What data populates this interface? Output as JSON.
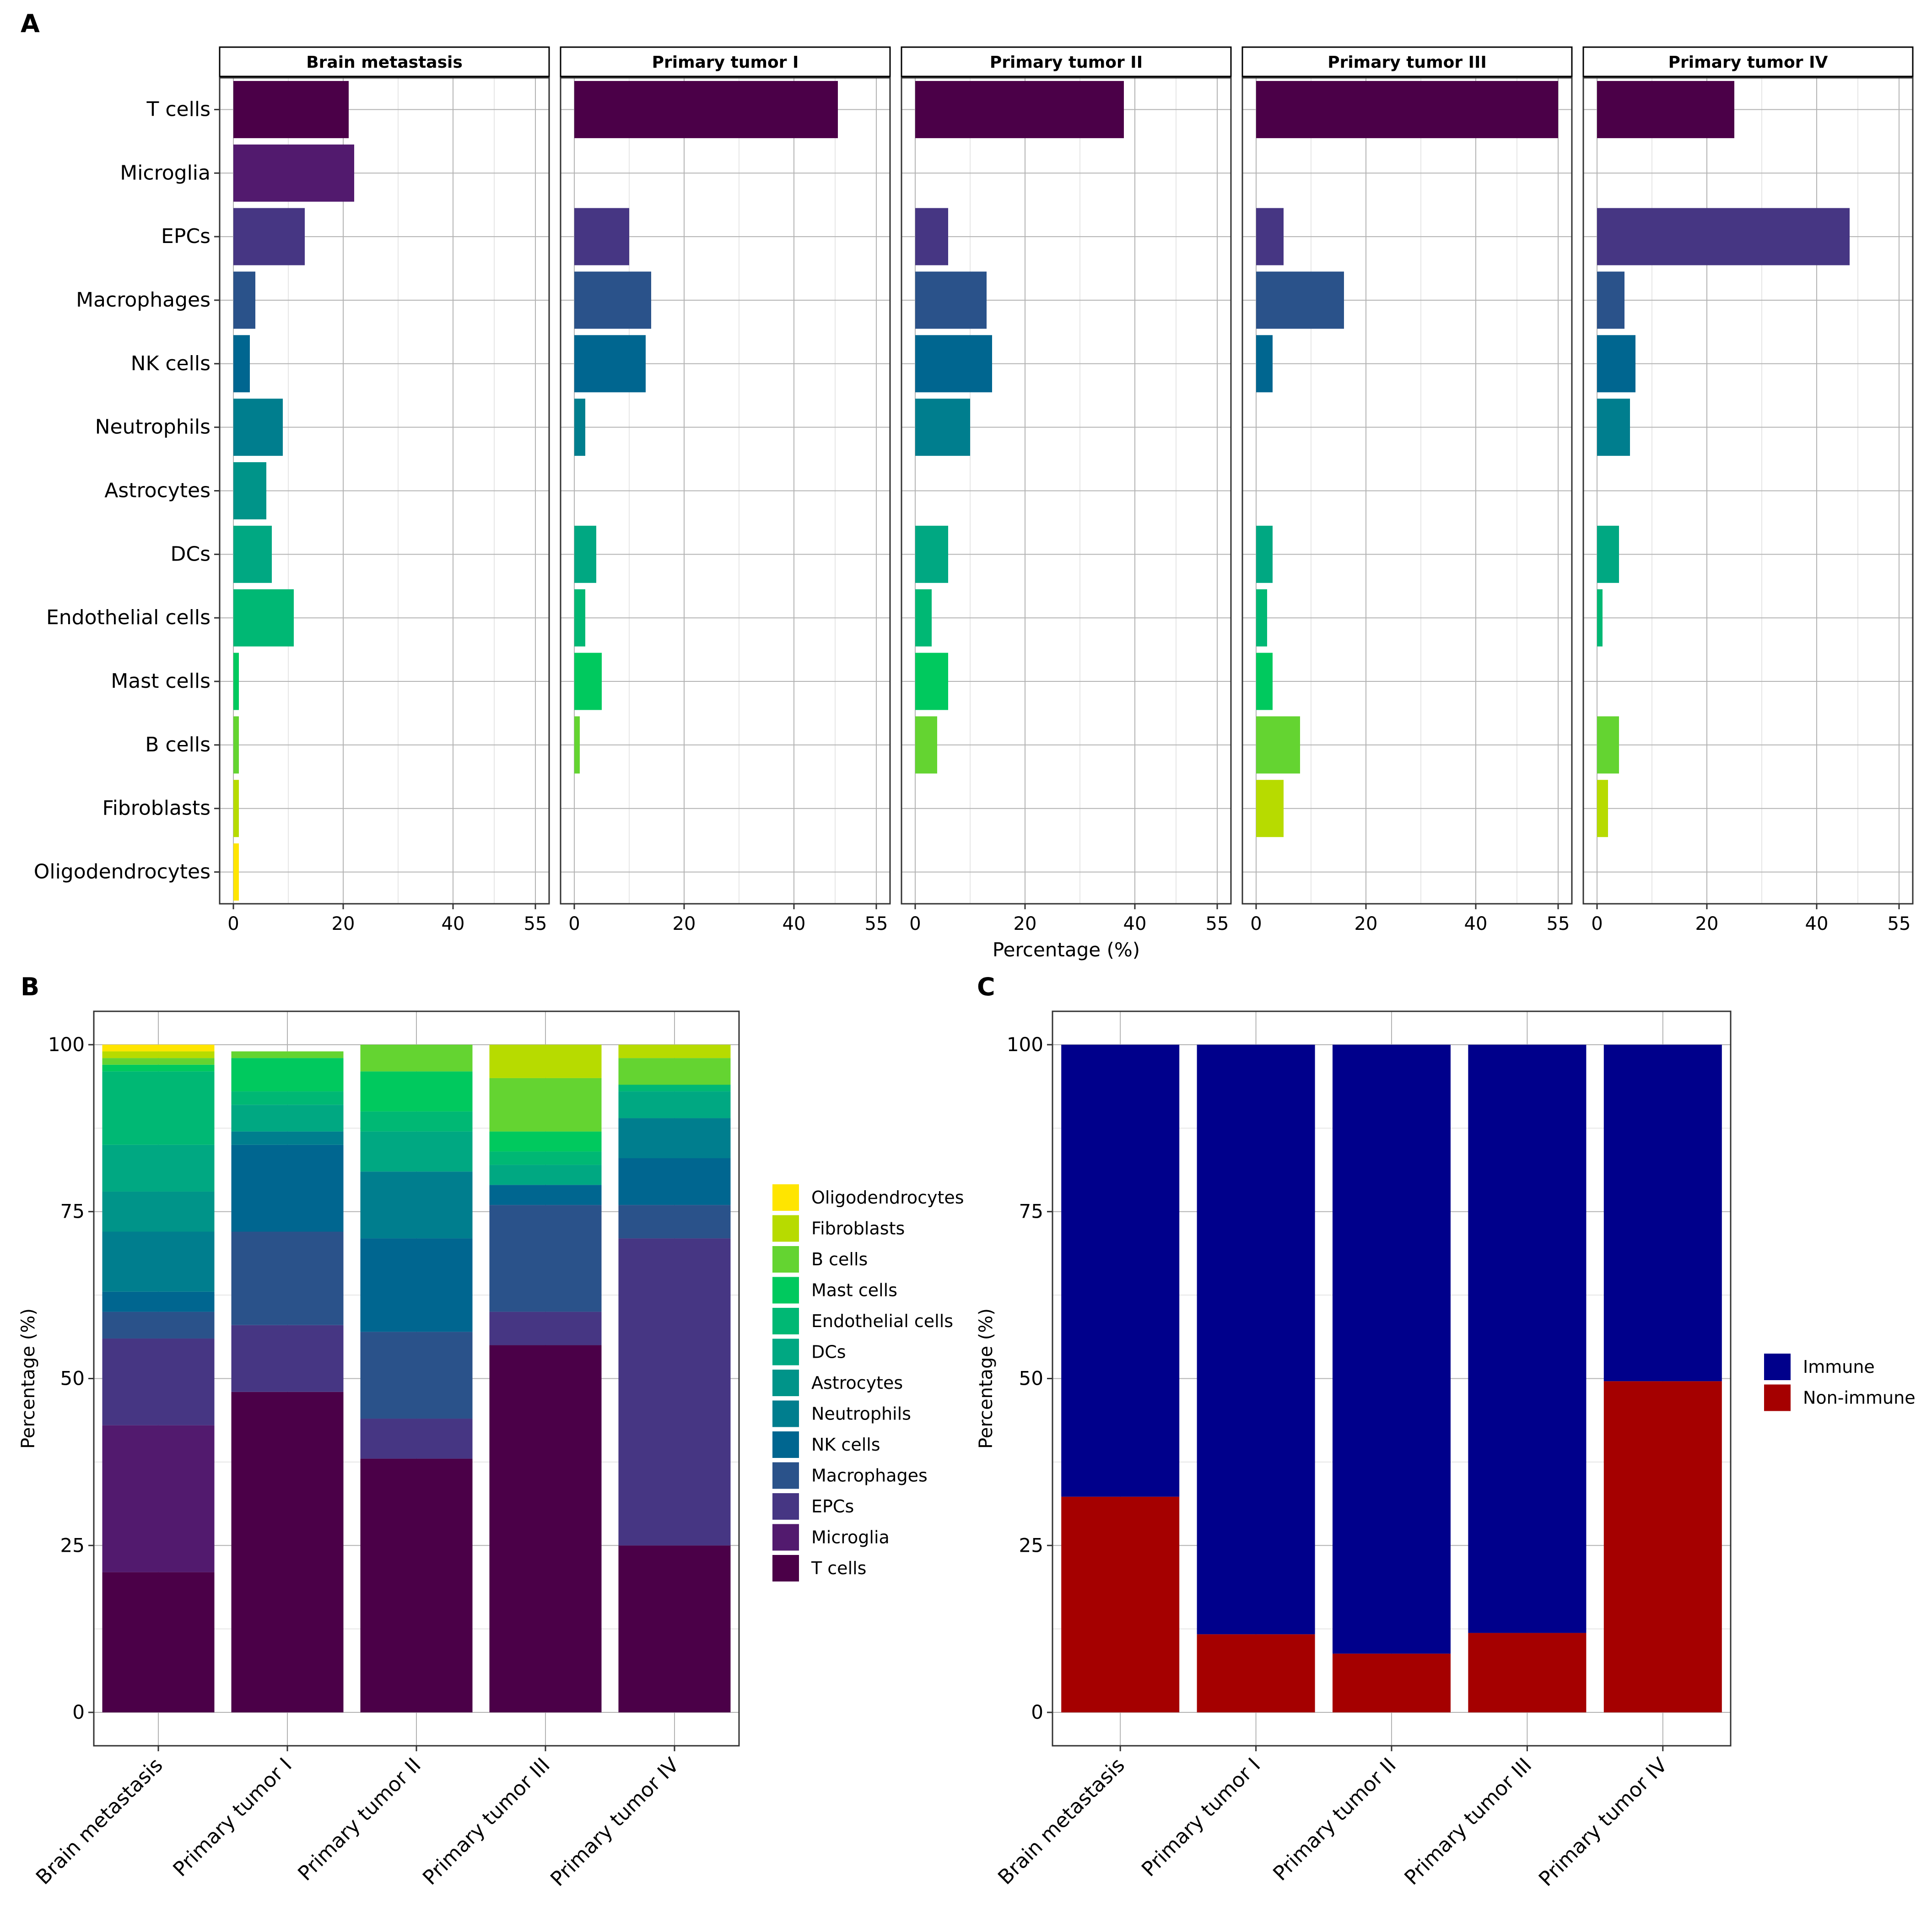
{
  "panel_labels": {
    "a": "A",
    "b": "B",
    "c": "C"
  },
  "colors": {
    "T cells": "#4B0048",
    "Microglia": "#521A6E",
    "EPCs": "#463683",
    "Macrophages": "#2A528A",
    "NK cells": "#006690",
    "Neutrophils": "#007E8E",
    "Astrocytes": "#009489",
    "DCs": "#00A882",
    "Endothelial cells": "#00B874",
    "Mast cells": "#00C95E",
    "B cells": "#64D431",
    "Fibroblasts": "#B7DB00",
    "Oligodendrocytes": "#FFE500",
    "Immune": "#00008B",
    "Non-immune": "#A50000",
    "grid_major": "#b3b3b3",
    "grid_minor": "#e6e6e6"
  },
  "chart_data": [
    {
      "id": "A",
      "type": "bar",
      "orientation": "horizontal",
      "facets": [
        "Brain metastasis",
        "Primary tumor I",
        "Primary tumor II",
        "Primary tumor III",
        "Primary tumor IV"
      ],
      "categories": [
        "T cells",
        "Microglia",
        "EPCs",
        "Macrophages",
        "NK cells",
        "Neutrophils",
        "Astrocytes",
        "DCs",
        "Endothelial cells",
        "Mast cells",
        "B cells",
        "Fibroblasts",
        "Oligodendrocytes"
      ],
      "values": [
        [
          21,
          22,
          13,
          4,
          3,
          9,
          6,
          7,
          11,
          1,
          1,
          1,
          1
        ],
        [
          48,
          0,
          10,
          14,
          13,
          2,
          0,
          4,
          2,
          5,
          1,
          0,
          0
        ],
        [
          38,
          0,
          6,
          13,
          14,
          10,
          0,
          6,
          3,
          6,
          4,
          0,
          0
        ],
        [
          55,
          0,
          5,
          16,
          3,
          0,
          0,
          3,
          2,
          3,
          8,
          5,
          0
        ],
        [
          25,
          0,
          46,
          5,
          7,
          6,
          0,
          4,
          1,
          0,
          4,
          2,
          0
        ]
      ],
      "xlabel": "Percentage (%)",
      "xticks": [
        0,
        20,
        40,
        55
      ],
      "xlim": [
        -2.5,
        57.5
      ]
    },
    {
      "id": "B",
      "type": "bar",
      "stacked": true,
      "categories": [
        "Brain metastasis",
        "Primary tumor I",
        "Primary tumor II",
        "Primary tumor III",
        "Primary tumor IV"
      ],
      "series": [
        {
          "name": "T cells",
          "values": [
            21,
            48,
            38,
            55,
            25
          ]
        },
        {
          "name": "Microglia",
          "values": [
            22,
            0,
            0,
            0,
            0
          ]
        },
        {
          "name": "EPCs",
          "values": [
            13,
            10,
            6,
            5,
            46
          ]
        },
        {
          "name": "Macrophages",
          "values": [
            4,
            14,
            13,
            16,
            5
          ]
        },
        {
          "name": "NK cells",
          "values": [
            3,
            13,
            14,
            3,
            7
          ]
        },
        {
          "name": "Neutrophils",
          "values": [
            9,
            2,
            10,
            0,
            6
          ]
        },
        {
          "name": "Astrocytes",
          "values": [
            6,
            0,
            0,
            0,
            0
          ]
        },
        {
          "name": "DCs",
          "values": [
            7,
            4,
            6,
            3,
            4
          ]
        },
        {
          "name": "Endothelial cells",
          "values": [
            11,
            2,
            3,
            2,
            1
          ]
        },
        {
          "name": "Mast cells",
          "values": [
            1,
            5,
            6,
            3,
            0
          ]
        },
        {
          "name": "B cells",
          "values": [
            1,
            1,
            4,
            8,
            4
          ]
        },
        {
          "name": "Fibroblasts",
          "values": [
            1,
            0,
            0,
            5,
            2
          ]
        },
        {
          "name": "Oligodendrocytes",
          "values": [
            1,
            0,
            0,
            0,
            0
          ]
        }
      ],
      "legend_order": [
        "Oligodendrocytes",
        "Fibroblasts",
        "B cells",
        "Mast cells",
        "Endothelial cells",
        "DCs",
        "Astrocytes",
        "Neutrophils",
        "NK cells",
        "Macrophages",
        "EPCs",
        "Microglia",
        "T cells"
      ],
      "ylabel": "Percentage (%)",
      "yticks": [
        0,
        25,
        50,
        75,
        100
      ],
      "ylim": [
        -5,
        105
      ]
    },
    {
      "id": "C",
      "type": "bar",
      "stacked": true,
      "categories": [
        "Brain metastasis",
        "Primary tumor I",
        "Primary tumor II",
        "Primary tumor III",
        "Primary tumor IV"
      ],
      "series": [
        {
          "name": "Non-immune",
          "values": [
            32.3,
            11.7,
            8.8,
            11.9,
            49.6
          ]
        },
        {
          "name": "Immune",
          "values": [
            67.7,
            88.3,
            91.2,
            88.1,
            50.4
          ]
        }
      ],
      "legend_order": [
        "Immune",
        "Non-immune"
      ],
      "ylabel": "Percentage (%)",
      "yticks": [
        0,
        25,
        50,
        75,
        100
      ],
      "ylim": [
        -5,
        105
      ]
    }
  ]
}
